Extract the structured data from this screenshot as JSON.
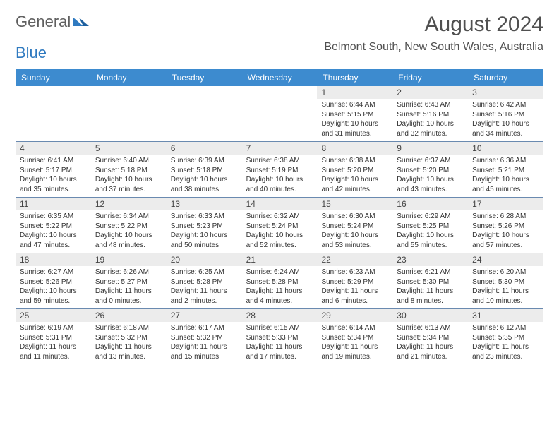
{
  "brand": {
    "part1": "General",
    "part2": "Blue"
  },
  "title": "August 2024",
  "location": "Belmont South, New South Wales, Australia",
  "colors": {
    "header_bg": "#3d8bcf",
    "header_text": "#ffffff",
    "daynum_bg": "#ececec",
    "week_border": "#6a8ab0",
    "text": "#333333",
    "brand_gray": "#606060",
    "brand_blue": "#2f7ac0"
  },
  "day_headers": [
    "Sunday",
    "Monday",
    "Tuesday",
    "Wednesday",
    "Thursday",
    "Friday",
    "Saturday"
  ],
  "weeks": [
    [
      {
        "empty": true
      },
      {
        "empty": true
      },
      {
        "empty": true
      },
      {
        "empty": true
      },
      {
        "num": "1",
        "sunrise": "6:44 AM",
        "sunset": "5:15 PM",
        "daylight": "10 hours and 31 minutes."
      },
      {
        "num": "2",
        "sunrise": "6:43 AM",
        "sunset": "5:16 PM",
        "daylight": "10 hours and 32 minutes."
      },
      {
        "num": "3",
        "sunrise": "6:42 AM",
        "sunset": "5:16 PM",
        "daylight": "10 hours and 34 minutes."
      }
    ],
    [
      {
        "num": "4",
        "sunrise": "6:41 AM",
        "sunset": "5:17 PM",
        "daylight": "10 hours and 35 minutes."
      },
      {
        "num": "5",
        "sunrise": "6:40 AM",
        "sunset": "5:18 PM",
        "daylight": "10 hours and 37 minutes."
      },
      {
        "num": "6",
        "sunrise": "6:39 AM",
        "sunset": "5:18 PM",
        "daylight": "10 hours and 38 minutes."
      },
      {
        "num": "7",
        "sunrise": "6:38 AM",
        "sunset": "5:19 PM",
        "daylight": "10 hours and 40 minutes."
      },
      {
        "num": "8",
        "sunrise": "6:38 AM",
        "sunset": "5:20 PM",
        "daylight": "10 hours and 42 minutes."
      },
      {
        "num": "9",
        "sunrise": "6:37 AM",
        "sunset": "5:20 PM",
        "daylight": "10 hours and 43 minutes."
      },
      {
        "num": "10",
        "sunrise": "6:36 AM",
        "sunset": "5:21 PM",
        "daylight": "10 hours and 45 minutes."
      }
    ],
    [
      {
        "num": "11",
        "sunrise": "6:35 AM",
        "sunset": "5:22 PM",
        "daylight": "10 hours and 47 minutes."
      },
      {
        "num": "12",
        "sunrise": "6:34 AM",
        "sunset": "5:22 PM",
        "daylight": "10 hours and 48 minutes."
      },
      {
        "num": "13",
        "sunrise": "6:33 AM",
        "sunset": "5:23 PM",
        "daylight": "10 hours and 50 minutes."
      },
      {
        "num": "14",
        "sunrise": "6:32 AM",
        "sunset": "5:24 PM",
        "daylight": "10 hours and 52 minutes."
      },
      {
        "num": "15",
        "sunrise": "6:30 AM",
        "sunset": "5:24 PM",
        "daylight": "10 hours and 53 minutes."
      },
      {
        "num": "16",
        "sunrise": "6:29 AM",
        "sunset": "5:25 PM",
        "daylight": "10 hours and 55 minutes."
      },
      {
        "num": "17",
        "sunrise": "6:28 AM",
        "sunset": "5:26 PM",
        "daylight": "10 hours and 57 minutes."
      }
    ],
    [
      {
        "num": "18",
        "sunrise": "6:27 AM",
        "sunset": "5:26 PM",
        "daylight": "10 hours and 59 minutes."
      },
      {
        "num": "19",
        "sunrise": "6:26 AM",
        "sunset": "5:27 PM",
        "daylight": "11 hours and 0 minutes."
      },
      {
        "num": "20",
        "sunrise": "6:25 AM",
        "sunset": "5:28 PM",
        "daylight": "11 hours and 2 minutes."
      },
      {
        "num": "21",
        "sunrise": "6:24 AM",
        "sunset": "5:28 PM",
        "daylight": "11 hours and 4 minutes."
      },
      {
        "num": "22",
        "sunrise": "6:23 AM",
        "sunset": "5:29 PM",
        "daylight": "11 hours and 6 minutes."
      },
      {
        "num": "23",
        "sunrise": "6:21 AM",
        "sunset": "5:30 PM",
        "daylight": "11 hours and 8 minutes."
      },
      {
        "num": "24",
        "sunrise": "6:20 AM",
        "sunset": "5:30 PM",
        "daylight": "11 hours and 10 minutes."
      }
    ],
    [
      {
        "num": "25",
        "sunrise": "6:19 AM",
        "sunset": "5:31 PM",
        "daylight": "11 hours and 11 minutes."
      },
      {
        "num": "26",
        "sunrise": "6:18 AM",
        "sunset": "5:32 PM",
        "daylight": "11 hours and 13 minutes."
      },
      {
        "num": "27",
        "sunrise": "6:17 AM",
        "sunset": "5:32 PM",
        "daylight": "11 hours and 15 minutes."
      },
      {
        "num": "28",
        "sunrise": "6:15 AM",
        "sunset": "5:33 PM",
        "daylight": "11 hours and 17 minutes."
      },
      {
        "num": "29",
        "sunrise": "6:14 AM",
        "sunset": "5:34 PM",
        "daylight": "11 hours and 19 minutes."
      },
      {
        "num": "30",
        "sunrise": "6:13 AM",
        "sunset": "5:34 PM",
        "daylight": "11 hours and 21 minutes."
      },
      {
        "num": "31",
        "sunrise": "6:12 AM",
        "sunset": "5:35 PM",
        "daylight": "11 hours and 23 minutes."
      }
    ]
  ],
  "labels": {
    "sunrise": "Sunrise:",
    "sunset": "Sunset:",
    "daylight": "Daylight:"
  }
}
